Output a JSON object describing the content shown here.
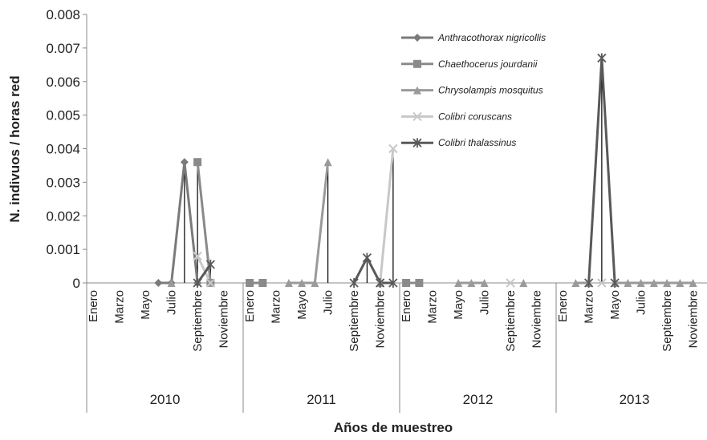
{
  "chart_data": {
    "type": "line",
    "y_label": "N. indivuos / horas red",
    "x_label": "Años de muestreo",
    "categories": [
      "Enero",
      null,
      "Marzo",
      null,
      "Mayo",
      null,
      "Julio",
      null,
      "Septiembre",
      null,
      "Noviembre",
      null,
      "Enero",
      null,
      "Marzo",
      null,
      "Mayo",
      null,
      "Julio",
      null,
      "Septiembre",
      null,
      "Noviembre",
      null,
      "Enero",
      null,
      "Marzo",
      null,
      "Mayo",
      null,
      "Julio",
      null,
      "Septiembre",
      null,
      "Noviembre",
      null,
      "Enero",
      null,
      "Marzo",
      null,
      "Mayo",
      null,
      "Julio",
      null,
      "Septiembre",
      null,
      "Noviembre",
      null
    ],
    "group_labels": [
      "2010",
      "2011",
      "2012",
      "2013"
    ],
    "ylim": [
      0,
      0.008
    ],
    "yticks": [
      0,
      0.001,
      0.002,
      0.003,
      0.004,
      0.005,
      0.006,
      0.007,
      0.008
    ],
    "drop_lines": true,
    "series": [
      {
        "name": "Anthracothorax nigricollis",
        "color": "#7a7a7a",
        "marker": "diamond",
        "values": [
          null,
          null,
          null,
          null,
          null,
          0,
          0,
          0.0036,
          0,
          null,
          null,
          null,
          null,
          null,
          null,
          null,
          null,
          null,
          null,
          null,
          null,
          null,
          null,
          null,
          null,
          null,
          null,
          null,
          null,
          null,
          null,
          null,
          null,
          null,
          null,
          null,
          null,
          null,
          null,
          null,
          null,
          null,
          null,
          null,
          null,
          null,
          null,
          null
        ]
      },
      {
        "name": "Chaethocerus jourdanii",
        "color": "#8a8a8a",
        "marker": "square",
        "values": [
          null,
          null,
          null,
          null,
          null,
          null,
          null,
          null,
          0.0036,
          0,
          null,
          null,
          0,
          0,
          null,
          null,
          null,
          null,
          null,
          null,
          null,
          null,
          null,
          null,
          0,
          0,
          null,
          null,
          null,
          null,
          null,
          null,
          null,
          null,
          null,
          null,
          null,
          null,
          null,
          null,
          null,
          null,
          null,
          null,
          null,
          null,
          null,
          null
        ]
      },
      {
        "name": "Chrysolampis mosquitus",
        "color": "#9a9a9a",
        "marker": "triangle",
        "values": [
          null,
          null,
          null,
          null,
          null,
          null,
          0,
          null,
          null,
          0,
          null,
          null,
          null,
          null,
          null,
          0,
          0,
          0,
          0.0036,
          null,
          null,
          null,
          0,
          null,
          null,
          null,
          null,
          null,
          0,
          0,
          0,
          null,
          null,
          0,
          null,
          null,
          null,
          0,
          0,
          null,
          0,
          0,
          0,
          0,
          0,
          0,
          0,
          null
        ]
      },
      {
        "name": "Colibri coruscans",
        "color": "#c8c8c8",
        "marker": "x",
        "values": [
          null,
          null,
          null,
          null,
          null,
          null,
          null,
          null,
          0.0008,
          0,
          null,
          null,
          null,
          null,
          null,
          null,
          null,
          null,
          null,
          null,
          null,
          null,
          0,
          0.004,
          null,
          null,
          null,
          null,
          null,
          null,
          null,
          null,
          0,
          null,
          null,
          null,
          null,
          null,
          null,
          0,
          null,
          null,
          null,
          null,
          null,
          null,
          null,
          null
        ]
      },
      {
        "name": "Colibri thalassinus",
        "color": "#595959",
        "marker": "asterisk",
        "values": [
          null,
          null,
          null,
          null,
          null,
          null,
          null,
          null,
          0,
          0.00055,
          null,
          null,
          null,
          null,
          null,
          null,
          null,
          null,
          null,
          null,
          0,
          0.00075,
          0,
          0,
          null,
          null,
          null,
          null,
          null,
          null,
          null,
          null,
          null,
          null,
          null,
          null,
          null,
          null,
          0,
          0.0067,
          0,
          null,
          null,
          null,
          null,
          null,
          null,
          null
        ]
      }
    ]
  }
}
